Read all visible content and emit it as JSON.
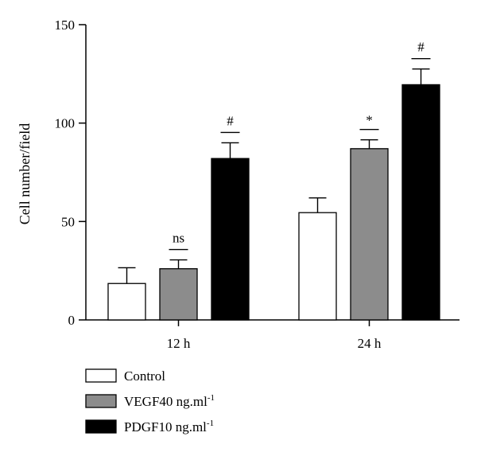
{
  "chart_data": {
    "type": "bar",
    "title": "",
    "xlabel": "",
    "ylabel": "Cell number/field",
    "ylim": [
      0,
      150
    ],
    "yticks": [
      0,
      50,
      100,
      150
    ],
    "categories": [
      "12 h",
      "24 h"
    ],
    "series": [
      {
        "name": "Control",
        "color": "#ffffff",
        "values": [
          18.5,
          54.5
        ],
        "errors": [
          8,
          7.5
        ]
      },
      {
        "name": "VEGF40 ng.ml-1",
        "color": "#8c8c8c",
        "values": [
          26,
          87
        ],
        "errors": [
          4.5,
          4.5
        ]
      },
      {
        "name": "PDGF10 ng.ml-1",
        "color": "#000000",
        "values": [
          82,
          119.5
        ],
        "errors": [
          8,
          8
        ]
      }
    ],
    "annotations": [
      {
        "category": "12 h",
        "series": "VEGF40 ng.ml-1",
        "text": "ns"
      },
      {
        "category": "12 h",
        "series": "PDGF10 ng.ml-1",
        "text": "#"
      },
      {
        "category": "24 h",
        "series": "VEGF40 ng.ml-1",
        "text": "*"
      },
      {
        "category": "24 h",
        "series": "PDGF10 ng.ml-1",
        "text": "#"
      }
    ],
    "legend": {
      "position": "bottom-left",
      "items": [
        {
          "label": "Control",
          "sup": ""
        },
        {
          "label": "VEGF40 ng.ml",
          "sup": "-1"
        },
        {
          "label": "PDGF10 ng.ml",
          "sup": "-1"
        }
      ]
    },
    "grid": false
  }
}
